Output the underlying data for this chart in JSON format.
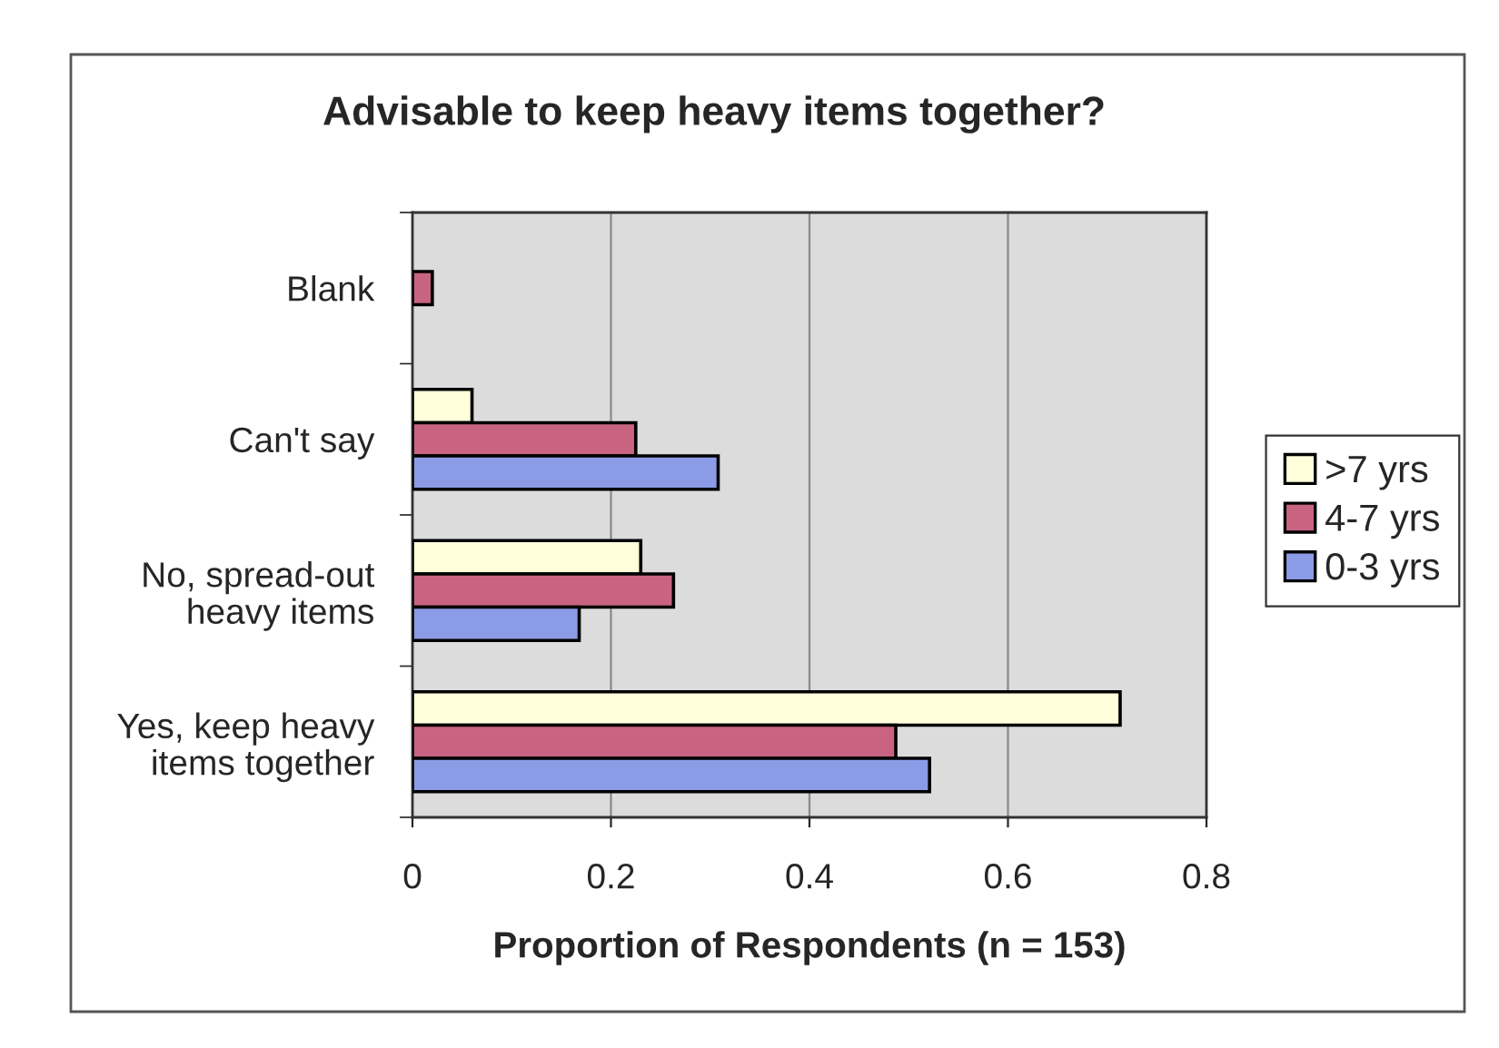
{
  "chart_data": {
    "type": "bar",
    "orientation": "horizontal",
    "title": "Advisable to keep heavy items together?",
    "xlabel": "Proportion of Respondents (n = 153)",
    "categories": [
      "Blank",
      "Can't say",
      "No, spread-out\nheavy items",
      "Yes, keep heavy\nitems together"
    ],
    "series": [
      {
        "name": ">7 yrs",
        "color": "#ffffdc",
        "values": [
          null,
          0.06,
          0.23,
          0.713
        ]
      },
      {
        "name": "4-7 yrs",
        "color": "#c86482",
        "values": [
          0.02,
          0.225,
          0.263,
          0.487
        ]
      },
      {
        "name": "0-3 yrs",
        "color": "#8c9be6",
        "values": [
          null,
          0.308,
          0.168,
          0.521
        ]
      }
    ],
    "xlim": [
      0,
      0.8
    ],
    "xticks": [
      0,
      0.2,
      0.4,
      0.6,
      0.8
    ],
    "grid": "x",
    "legend": "right"
  }
}
